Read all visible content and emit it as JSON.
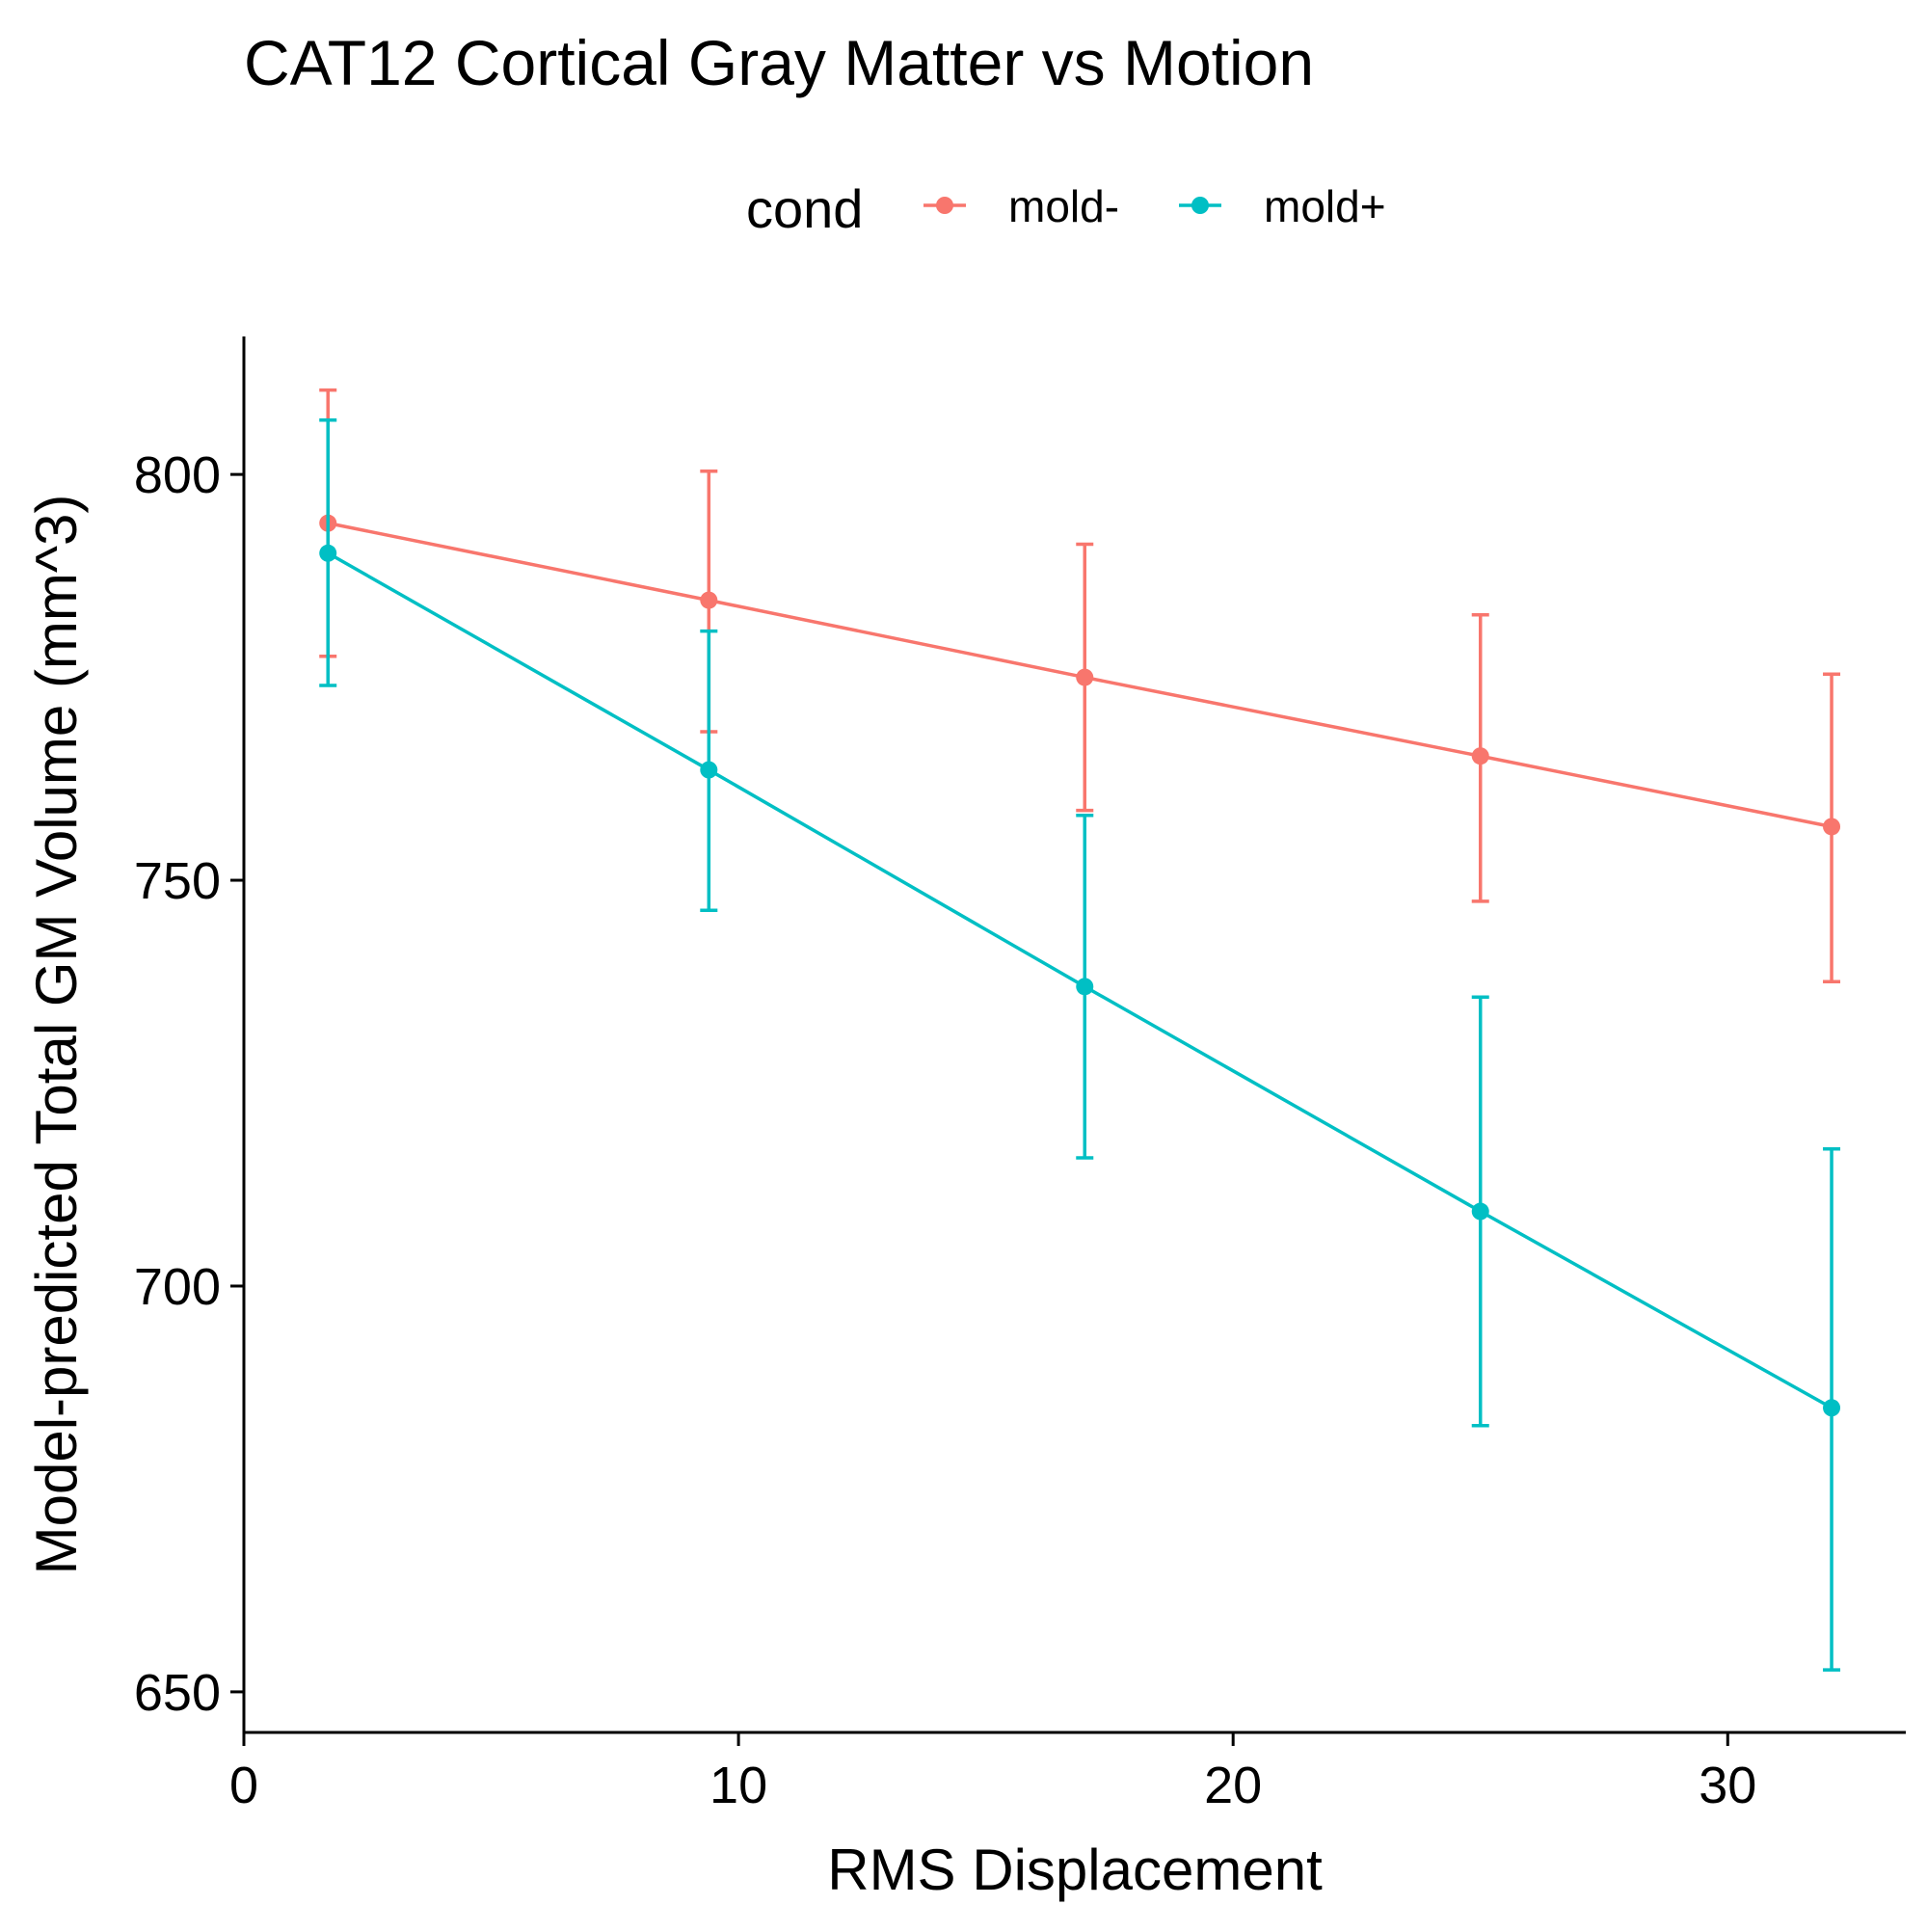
{
  "chart_data": {
    "type": "line",
    "title": "CAT12 Cortical Gray Matter vs Motion",
    "xlabel": "RMS Displacement",
    "ylabel": "Model-predicted Total GM Volume (mm^3)",
    "xlim": [
      0,
      33.6
    ],
    "ylim": [
      645,
      817
    ],
    "xticks": [
      0,
      10,
      20,
      30
    ],
    "yticks": [
      650,
      700,
      750,
      800
    ],
    "grid": false,
    "legend": {
      "title": "cond",
      "position": "top"
    },
    "x": [
      1.7,
      9.4,
      17.0,
      25.0,
      32.1
    ],
    "series": [
      {
        "name": "mold-",
        "color": "#F8766D",
        "values": [
          794.0,
          784.5,
          775.0,
          765.3,
          756.6
        ],
        "lower": [
          777.6,
          768.3,
          758.6,
          747.4,
          737.5
        ],
        "upper": [
          810.4,
          800.4,
          791.4,
          782.7,
          775.4
        ]
      },
      {
        "name": "mold+",
        "color": "#00BFC4",
        "values": [
          790.3,
          763.6,
          736.9,
          709.2,
          685.0
        ],
        "lower": [
          774.0,
          746.3,
          715.8,
          682.8,
          652.7
        ],
        "upper": [
          806.7,
          780.7,
          758.0,
          735.6,
          716.9
        ]
      }
    ]
  }
}
